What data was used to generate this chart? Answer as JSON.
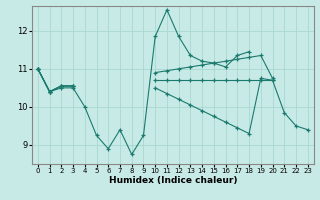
{
  "xlabel": "Humidex (Indice chaleur)",
  "background_color": "#c8eae6",
  "grid_color": "#a8d8d0",
  "line_color": "#1a7a6e",
  "xlim": [
    -0.5,
    23.5
  ],
  "ylim": [
    8.5,
    12.65
  ],
  "yticks": [
    9,
    10,
    11,
    12
  ],
  "xticks": [
    0,
    1,
    2,
    3,
    4,
    5,
    6,
    7,
    8,
    9,
    10,
    11,
    12,
    13,
    14,
    15,
    16,
    17,
    18,
    19,
    20,
    21,
    22,
    23
  ],
  "series": [
    [
      11.0,
      10.4,
      10.5,
      10.5,
      10.0,
      9.25,
      8.9,
      9.4,
      8.75,
      9.25,
      11.85,
      12.55,
      11.85,
      11.35,
      11.2,
      11.15,
      11.05,
      11.35,
      11.45,
      null,
      null,
      null,
      null,
      null
    ],
    [
      11.0,
      10.4,
      10.55,
      10.55,
      null,
      null,
      null,
      null,
      null,
      null,
      10.9,
      10.95,
      11.0,
      11.05,
      11.1,
      11.15,
      11.2,
      11.25,
      11.3,
      11.35,
      10.75,
      null,
      null,
      null
    ],
    [
      11.0,
      10.4,
      10.55,
      10.55,
      null,
      null,
      null,
      null,
      null,
      null,
      10.7,
      10.7,
      10.7,
      10.7,
      10.7,
      10.7,
      10.7,
      10.7,
      10.7,
      10.7,
      10.7,
      null,
      null,
      null
    ],
    [
      11.0,
      10.4,
      10.55,
      10.55,
      null,
      null,
      null,
      null,
      null,
      null,
      10.5,
      10.35,
      10.2,
      10.05,
      9.9,
      9.75,
      9.6,
      9.45,
      9.3,
      10.75,
      10.7,
      9.85,
      9.5,
      9.4
    ]
  ]
}
